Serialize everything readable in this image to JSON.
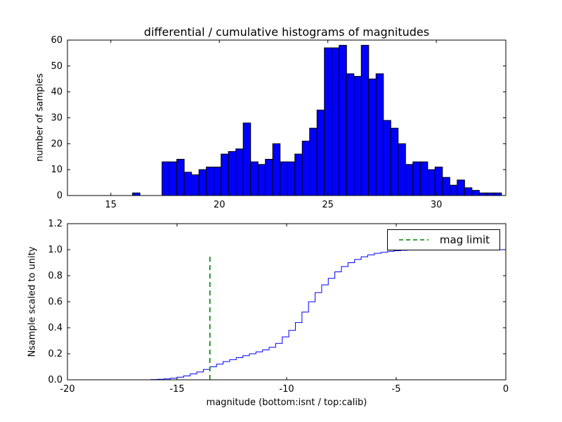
{
  "figure": {
    "background": "#ffffff"
  },
  "chart_data": [
    {
      "type": "bar",
      "role": "differential-histogram",
      "title": "differential / cumulative histograms of magnitudes",
      "ylabel": "number of samples",
      "xlim": [
        13,
        33.2
      ],
      "ylim": [
        0,
        60
      ],
      "xticks": [
        15,
        20,
        25,
        30
      ],
      "xticklabels": [
        "15",
        "20",
        "25",
        "30"
      ],
      "yticks": [
        0,
        10,
        20,
        30,
        40,
        50,
        60
      ],
      "yticklabels": [
        "0",
        "10",
        "20",
        "30",
        "40",
        "50",
        "60"
      ],
      "bar_color": "#0000ff",
      "bar_edge_color": "#000000",
      "bin_start": 16.0,
      "bin_width": 0.34,
      "counts": [
        1,
        0,
        0,
        0,
        13,
        13,
        14,
        9,
        8,
        10,
        11,
        11,
        16,
        17,
        18,
        28,
        13,
        12,
        14,
        20,
        13,
        13,
        16,
        21,
        26,
        33,
        57,
        57,
        58,
        47,
        46,
        58,
        45,
        47,
        29,
        26,
        20,
        12,
        13,
        13,
        10,
        11,
        7,
        4,
        6,
        3,
        2,
        1,
        1,
        1
      ]
    },
    {
      "type": "line",
      "role": "cumulative-histogram",
      "ylabel": "Nsample scaled to unity",
      "xlabel": "magnitude (bottom:isnt / top:calib)",
      "xlim": [
        -20,
        0
      ],
      "ylim": [
        0,
        1.2
      ],
      "xticks": [
        -20,
        -15,
        -10,
        -5,
        0
      ],
      "xticklabels": [
        "-20",
        "-15",
        "-10",
        "-5",
        "0"
      ],
      "yticks": [
        0,
        0.2,
        0.4,
        0.6,
        0.8,
        1.0,
        1.2
      ],
      "yticklabels": [
        "0.0",
        "0.2",
        "0.4",
        "0.6",
        "0.8",
        "1.0",
        "1.2"
      ],
      "line_color": "#0000ff",
      "step": true,
      "x": [
        -16.2,
        -15.9,
        -15.6,
        -15.3,
        -15.0,
        -14.7,
        -14.4,
        -14.1,
        -13.8,
        -13.5,
        -13.2,
        -12.9,
        -12.6,
        -12.3,
        -12.0,
        -11.7,
        -11.4,
        -11.1,
        -10.8,
        -10.5,
        -10.2,
        -9.9,
        -9.6,
        -9.3,
        -9.0,
        -8.7,
        -8.4,
        -8.1,
        -7.8,
        -7.5,
        -7.2,
        -6.9,
        -6.6,
        -6.3,
        -6.0,
        -5.7,
        -5.4,
        -5.1,
        -4.8,
        -4.5,
        -4.2,
        -3.9,
        -3.6,
        -3.0,
        -2.4,
        -1.8,
        -1.2,
        -0.6,
        0.0
      ],
      "y": [
        0.002,
        0.004,
        0.007,
        0.012,
        0.02,
        0.03,
        0.045,
        0.06,
        0.08,
        0.1,
        0.12,
        0.14,
        0.155,
        0.17,
        0.185,
        0.2,
        0.215,
        0.23,
        0.25,
        0.28,
        0.33,
        0.38,
        0.44,
        0.52,
        0.6,
        0.67,
        0.73,
        0.78,
        0.83,
        0.87,
        0.9,
        0.925,
        0.945,
        0.96,
        0.972,
        0.98,
        0.987,
        0.992,
        0.995,
        0.997,
        0.998,
        0.999,
        1.0,
        1.0,
        1.0,
        1.0,
        1.0,
        1.0,
        1.0
      ],
      "mag_limit_line": {
        "x": -13.5,
        "y_top": 0.96,
        "color": "#008000",
        "style": "dashed"
      },
      "legend": {
        "label": "mag limit",
        "position": "upper right"
      }
    }
  ]
}
